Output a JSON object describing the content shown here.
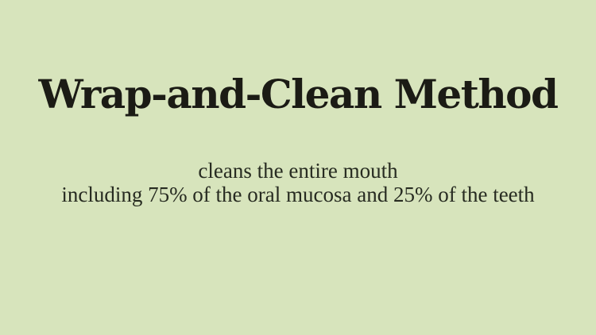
{
  "slide": {
    "title": "Wrap-and-Clean Method",
    "subtitle_line1": "cleans the entire mouth",
    "subtitle_line2": "including 75% of the oral mucosa and 25% of the teeth"
  },
  "colors": {
    "background": "#d7e4bc",
    "title_text": "#1b1b15",
    "subtitle_text": "#272b21"
  }
}
